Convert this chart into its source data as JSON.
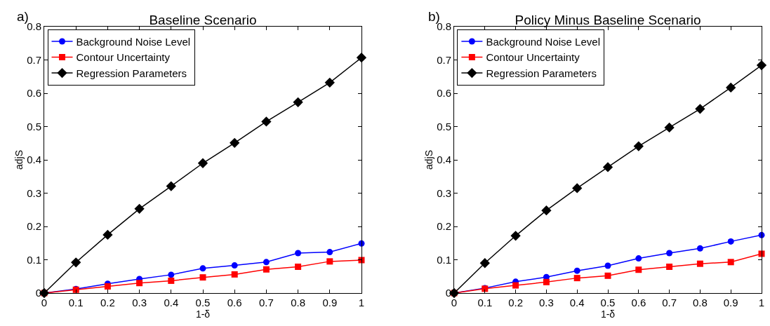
{
  "chart_data": [
    {
      "type": "line",
      "title": "Baseline Scenario",
      "annotations": [
        "a)"
      ],
      "xlabel": "1-δ",
      "ylabel": "adjS",
      "x": [
        0,
        0.1,
        0.2,
        0.3,
        0.4,
        0.5,
        0.6,
        0.7,
        0.8,
        0.9,
        1
      ],
      "xlim": [
        0,
        1
      ],
      "xticks": [
        0,
        0.1,
        0.2,
        0.3,
        0.4,
        0.5,
        0.6,
        0.7,
        0.8,
        0.9,
        1
      ],
      "ylim": [
        0,
        0.8
      ],
      "yticks": [
        0,
        0.1,
        0.2,
        0.3,
        0.4,
        0.5,
        0.6,
        0.7,
        0.8
      ],
      "grid": false,
      "legend": "top left",
      "line_style": "solid",
      "series": [
        {
          "name": "Background Noise Level",
          "color": "#0000ff",
          "marker": "circle",
          "values": [
            0,
            0.012,
            0.028,
            0.042,
            0.055,
            0.074,
            0.083,
            0.093,
            0.12,
            0.123,
            0.149
          ]
        },
        {
          "name": "Contour Uncertainty",
          "color": "#ff0000",
          "marker": "square",
          "values": [
            0,
            0.01,
            0.02,
            0.03,
            0.037,
            0.047,
            0.056,
            0.071,
            0.079,
            0.095,
            0.099
          ]
        },
        {
          "name": "Regression Parameters",
          "color": "#000000",
          "marker": "diamond",
          "values": [
            0,
            0.092,
            0.175,
            0.253,
            0.321,
            0.39,
            0.451,
            0.515,
            0.573,
            0.632,
            0.707
          ]
        }
      ]
    },
    {
      "type": "line",
      "title": "Policy Minus Baseline Scenario",
      "annotations": [
        "b)"
      ],
      "xlabel": "1-δ",
      "ylabel": "adjS",
      "x": [
        0,
        0.1,
        0.2,
        0.3,
        0.4,
        0.5,
        0.6,
        0.7,
        0.8,
        0.9,
        1
      ],
      "xlim": [
        0,
        1
      ],
      "xticks": [
        0,
        0.1,
        0.2,
        0.3,
        0.4,
        0.5,
        0.6,
        0.7,
        0.8,
        0.9,
        1
      ],
      "ylim": [
        0,
        0.8
      ],
      "yticks": [
        0,
        0.1,
        0.2,
        0.3,
        0.4,
        0.5,
        0.6,
        0.7,
        0.8
      ],
      "grid": false,
      "legend": "top left",
      "line_style": "solid",
      "series": [
        {
          "name": "Background Noise Level",
          "color": "#0000ff",
          "marker": "circle",
          "values": [
            0,
            0.015,
            0.034,
            0.048,
            0.067,
            0.082,
            0.104,
            0.12,
            0.134,
            0.155,
            0.174
          ]
        },
        {
          "name": "Contour Uncertainty",
          "color": "#ff0000",
          "marker": "square",
          "values": [
            0,
            0.013,
            0.023,
            0.033,
            0.045,
            0.052,
            0.07,
            0.079,
            0.088,
            0.093,
            0.118
          ]
        },
        {
          "name": "Regression Parameters",
          "color": "#000000",
          "marker": "diamond",
          "values": [
            0,
            0.09,
            0.172,
            0.248,
            0.315,
            0.378,
            0.441,
            0.497,
            0.553,
            0.617,
            0.684
          ]
        }
      ]
    }
  ]
}
